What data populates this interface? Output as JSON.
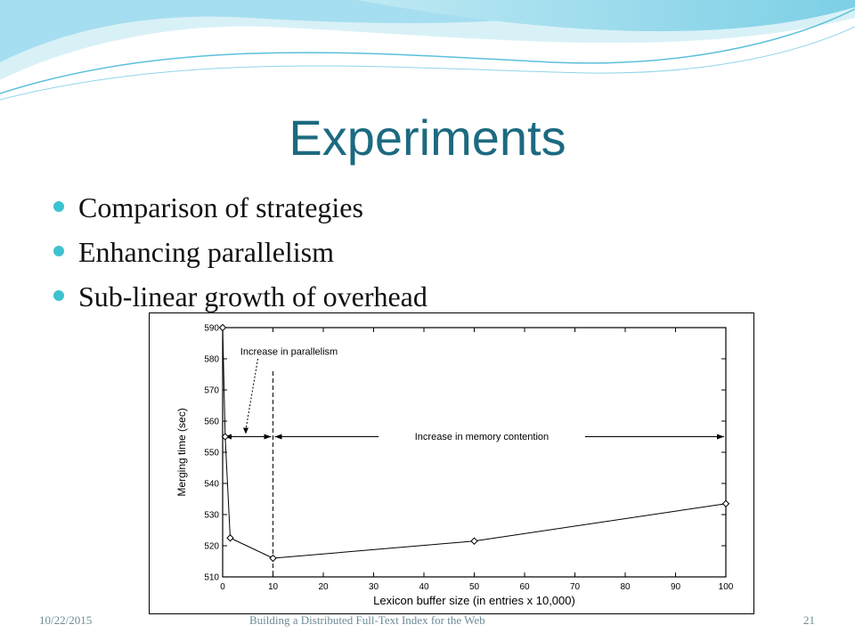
{
  "slide": {
    "title": "Experiments",
    "bullets": [
      "Comparison of strategies",
      "Enhancing parallelism",
      "Sub-linear growth of overhead"
    ],
    "colors": {
      "title": "#1c6a80",
      "bullet": "#3dc2cf",
      "banner": "#7ccfe6"
    }
  },
  "footer": {
    "date": "10/22/2015",
    "title": "Building a Distributed Full-Text Index for the Web",
    "page": "21"
  },
  "chart_data": {
    "type": "line",
    "title": "",
    "xlabel": "Lexicon buffer size (in entries x 10,000)",
    "ylabel": "Merging time (sec)",
    "xlim": [
      0,
      100
    ],
    "ylim": [
      510,
      590
    ],
    "x_ticks": [
      0,
      10,
      20,
      30,
      40,
      50,
      60,
      70,
      80,
      90,
      100
    ],
    "y_ticks": [
      510,
      520,
      530,
      540,
      550,
      560,
      570,
      580,
      590
    ],
    "grid": false,
    "series": [
      {
        "x": [
          0,
          0.5,
          1.5,
          10,
          50,
          100
        ],
        "y": [
          590,
          555,
          522.5,
          516,
          521.5,
          533.5
        ]
      }
    ],
    "annotations": {
      "parallelism_label": "Increase in parallelism",
      "contention_label": "Increase in memory contention",
      "divider_x": 10,
      "arrow_y": 555
    }
  }
}
